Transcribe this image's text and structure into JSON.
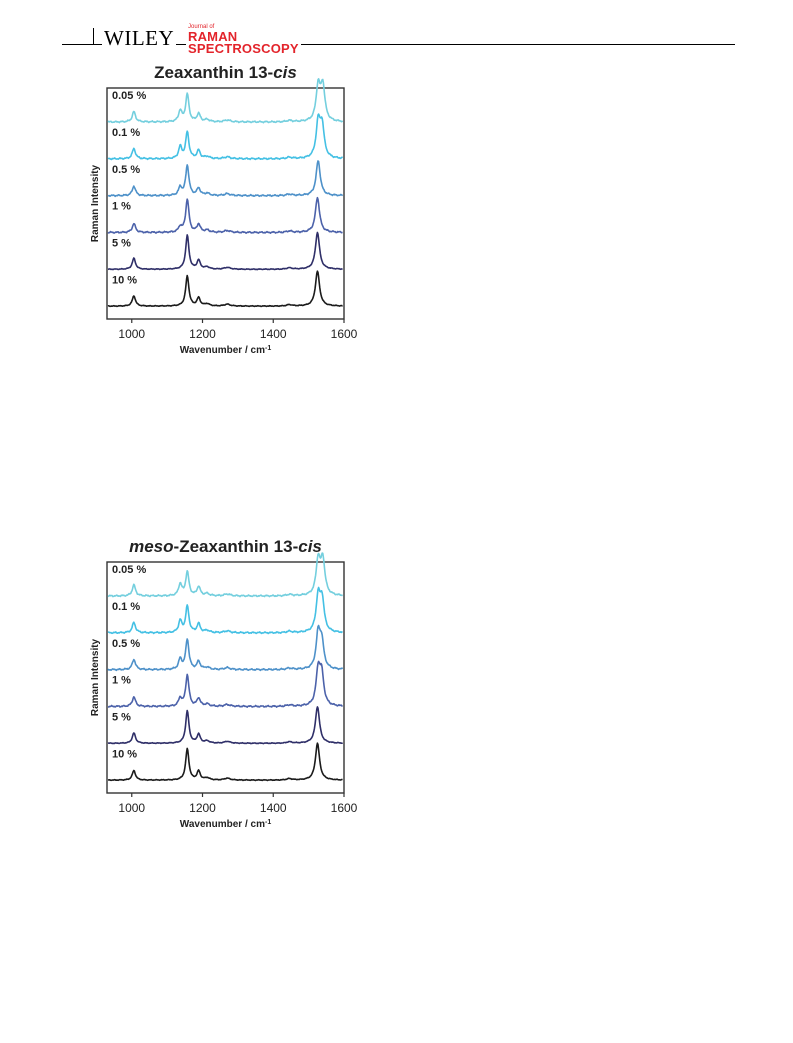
{
  "header": {
    "publisher": "WILEY",
    "journal_prefix": "Journal of",
    "journal_line1": "RAMAN",
    "journal_line2": "SPECTROSCOPY"
  },
  "chart_data": [
    {
      "type": "line",
      "title": "Zeaxanthin 13-cis",
      "title_plain": "Zeaxanthin 13-",
      "title_italic": "cis",
      "xlabel": "Wavenumber / cm",
      "xlabel_sup": "-1",
      "ylabel": "Raman Intensity",
      "xlim": [
        930,
        1600
      ],
      "xticks": [
        1000,
        1200,
        1400,
        1600
      ],
      "stacked": true,
      "grid": false,
      "series": [
        {
          "name": "0.05 %",
          "color": "#74cfde"
        },
        {
          "name": "0.1 %",
          "color": "#44c0e4"
        },
        {
          "name": "0.5 %",
          "color": "#4e91c9"
        },
        {
          "name": "1 %",
          "color": "#4c62aa"
        },
        {
          "name": "5 %",
          "color": "#2f2f68"
        },
        {
          "name": "10 %",
          "color": "#1b1b1b"
        }
      ],
      "peaks": [
        {
          "name": "0.05 %",
          "values": [
            [
              1006,
              0.28
            ],
            [
              1137,
              0.3
            ],
            [
              1157,
              0.75
            ],
            [
              1189,
              0.22
            ],
            [
              1527,
              0.95
            ],
            [
              1540,
              0.95
            ]
          ]
        },
        {
          "name": "0.1 %",
          "values": [
            [
              1006,
              0.28
            ],
            [
              1137,
              0.32
            ],
            [
              1157,
              0.72
            ],
            [
              1189,
              0.22
            ],
            [
              1527,
              0.95
            ],
            [
              1538,
              0.85
            ]
          ]
        },
        {
          "name": "0.5 %",
          "values": [
            [
              1006,
              0.26
            ],
            [
              1137,
              0.22
            ],
            [
              1157,
              0.82
            ],
            [
              1189,
              0.2
            ],
            [
              1527,
              0.95
            ]
          ]
        },
        {
          "name": "1 %",
          "values": [
            [
              1006,
              0.24
            ],
            [
              1137,
              0.15
            ],
            [
              1157,
              0.9
            ],
            [
              1189,
              0.22
            ],
            [
              1525,
              0.95
            ]
          ]
        },
        {
          "name": "5 %",
          "values": [
            [
              1006,
              0.3
            ],
            [
              1157,
              0.92
            ],
            [
              1189,
              0.24
            ],
            [
              1525,
              1.0
            ]
          ]
        },
        {
          "name": "10 %",
          "values": [
            [
              1006,
              0.28
            ],
            [
              1157,
              0.82
            ],
            [
              1189,
              0.22
            ],
            [
              1525,
              0.95
            ]
          ]
        }
      ]
    },
    {
      "type": "line",
      "title": "meso-Zeaxanthin 13-cis",
      "title_plain": "-Zeaxanthin 13-",
      "title_italic_prefix": "meso",
      "title_italic": "cis",
      "xlabel": "Wavenumber / cm",
      "xlabel_sup": "-1",
      "ylabel": "Raman Intensity",
      "xlim": [
        930,
        1600
      ],
      "xticks": [
        1000,
        1200,
        1400,
        1600
      ],
      "stacked": true,
      "grid": false,
      "series": [
        {
          "name": "0.05 %",
          "color": "#74cfde"
        },
        {
          "name": "0.1 %",
          "color": "#44c0e4"
        },
        {
          "name": "0.5 %",
          "color": "#4e91c9"
        },
        {
          "name": "1 %",
          "color": "#4c62aa"
        },
        {
          "name": "5 %",
          "color": "#2f2f68"
        },
        {
          "name": "10 %",
          "color": "#1b1b1b"
        }
      ],
      "peaks": [
        {
          "name": "0.05 %",
          "values": [
            [
              1006,
              0.3
            ],
            [
              1137,
              0.32
            ],
            [
              1157,
              0.65
            ],
            [
              1189,
              0.25
            ],
            [
              1527,
              0.95
            ],
            [
              1540,
              0.95
            ]
          ]
        },
        {
          "name": "0.1 %",
          "values": [
            [
              1006,
              0.28
            ],
            [
              1137,
              0.32
            ],
            [
              1157,
              0.72
            ],
            [
              1189,
              0.24
            ],
            [
              1527,
              0.95
            ],
            [
              1538,
              0.85
            ]
          ]
        },
        {
          "name": "0.5 %",
          "values": [
            [
              1006,
              0.28
            ],
            [
              1137,
              0.28
            ],
            [
              1157,
              0.82
            ],
            [
              1189,
              0.22
            ],
            [
              1527,
              0.95
            ],
            [
              1537,
              0.7
            ]
          ]
        },
        {
          "name": "1 %",
          "values": [
            [
              1006,
              0.26
            ],
            [
              1137,
              0.22
            ],
            [
              1157,
              0.85
            ],
            [
              1189,
              0.22
            ],
            [
              1527,
              0.95
            ],
            [
              1537,
              0.8
            ]
          ]
        },
        {
          "name": "5 %",
          "values": [
            [
              1006,
              0.28
            ],
            [
              1157,
              0.88
            ],
            [
              1189,
              0.24
            ],
            [
              1525,
              1.0
            ]
          ]
        },
        {
          "name": "10 %",
          "values": [
            [
              1006,
              0.26
            ],
            [
              1157,
              0.85
            ],
            [
              1189,
              0.24
            ],
            [
              1525,
              1.0
            ]
          ]
        }
      ]
    }
  ]
}
